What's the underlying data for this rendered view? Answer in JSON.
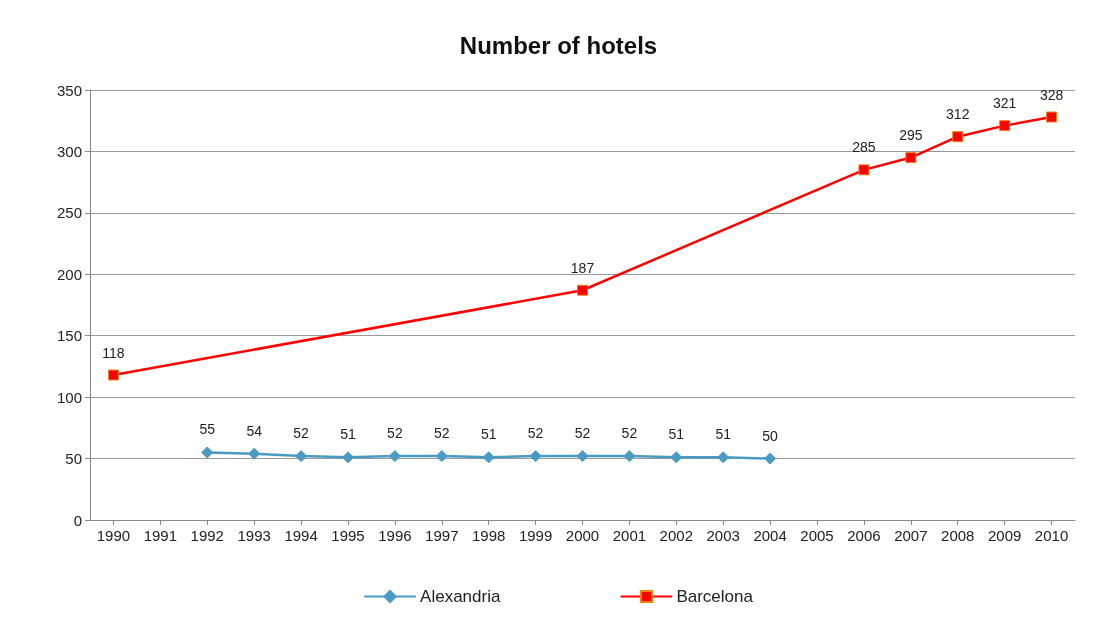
{
  "chart_data": {
    "type": "line",
    "title": "Number of hotels",
    "series": [
      {
        "name": "Alexandria",
        "color": "#4a9bc4",
        "marker": "diamond",
        "x": [
          1992,
          1993,
          1994,
          1995,
          1996,
          1997,
          1998,
          1999,
          2000,
          2001,
          2002,
          2003,
          2004
        ],
        "values": [
          55,
          54,
          52,
          51,
          52,
          52,
          51,
          52,
          52,
          52,
          51,
          51,
          50
        ]
      },
      {
        "name": "Barcelona",
        "color": "#ff0000",
        "marker": "square",
        "x": [
          1990,
          2000,
          2006,
          2007,
          2008,
          2009,
          2010
        ],
        "values": [
          118,
          187,
          285,
          295,
          312,
          321,
          328
        ]
      }
    ],
    "xlim": [
      1989.5,
      2010.5
    ],
    "xticks": [
      1990,
      1991,
      1992,
      1993,
      1994,
      1995,
      1996,
      1997,
      1998,
      1999,
      2000,
      2001,
      2002,
      2003,
      2004,
      2005,
      2006,
      2007,
      2008,
      2009,
      2010
    ],
    "ylim": [
      0,
      350
    ],
    "yticks": [
      0,
      50,
      100,
      150,
      200,
      250,
      300,
      350
    ],
    "grid": "y",
    "legend": "bottom",
    "data_labels": true,
    "line_style": "solid"
  }
}
